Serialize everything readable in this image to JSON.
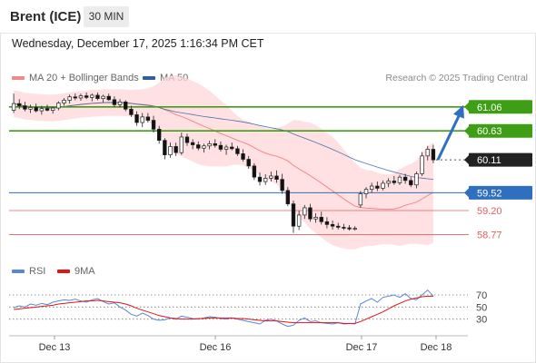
{
  "header": {
    "title": "Brent (ICE)",
    "timeframe": "30 MIN"
  },
  "subheader": {
    "datetime": "Wednesday, December 17, 2025 1:16:34 PM CET"
  },
  "legend": {
    "ma20_label": "MA 20 + Bollinger Bands",
    "ma50_label": "MA 50",
    "rsi_label": "RSI",
    "rsi_ma_label": "9MA",
    "credit": "Research © 2025 Trading Central"
  },
  "colors": {
    "ma20": "#f08a8a",
    "ma50": "#2f5fa0",
    "band": "#ffd6d9",
    "green": "#3e9e16",
    "blue_level": "#2e6fbf",
    "red_level": "#e06060",
    "price_tag": "#222222",
    "rsi": "#5b86d6",
    "rsi_ma": "#e01515",
    "candle_up": "#ffffff",
    "candle_down": "#111111"
  },
  "chart_data": [
    {
      "type": "candlestick",
      "y_range": [
        58.5,
        61.35
      ],
      "x_ticks": [
        "Dec 13",
        "Dec 16",
        "Dec 17",
        "Dec 18"
      ],
      "levels": [
        {
          "value": 61.06,
          "label": "61.06",
          "style": "green-tag"
        },
        {
          "value": 60.63,
          "label": "60.63",
          "style": "green-tag"
        },
        {
          "value": 60.11,
          "label": "60.11",
          "style": "current-price"
        },
        {
          "value": 59.52,
          "label": "59.52",
          "style": "blue-tag"
        },
        {
          "value": 59.2,
          "label": "59.20",
          "style": "red-text"
        },
        {
          "value": 58.77,
          "label": "58.77",
          "style": "red-text"
        }
      ],
      "forecast_arrow": {
        "from": 60.11,
        "to": 61.06
      },
      "candles": [
        [
          61.0,
          61.3,
          60.95,
          61.12
        ],
        [
          61.12,
          61.2,
          61.02,
          61.08
        ],
        [
          61.08,
          61.15,
          60.98,
          61.02
        ],
        [
          61.02,
          61.1,
          60.95,
          61.05
        ],
        [
          61.05,
          61.12,
          60.96,
          60.99
        ],
        [
          60.99,
          61.08,
          60.92,
          61.03
        ],
        [
          61.03,
          61.1,
          60.98,
          61.0
        ],
        [
          61.0,
          61.06,
          60.94,
          61.04
        ],
        [
          61.04,
          61.16,
          61.0,
          61.13
        ],
        [
          61.13,
          61.22,
          61.08,
          61.18
        ],
        [
          61.18,
          61.28,
          61.12,
          61.24
        ],
        [
          61.24,
          61.3,
          61.18,
          61.22
        ],
        [
          61.22,
          61.3,
          61.17,
          61.26
        ],
        [
          61.26,
          61.32,
          61.2,
          61.23
        ],
        [
          61.23,
          61.3,
          61.16,
          61.27
        ],
        [
          61.27,
          61.32,
          61.18,
          61.21
        ],
        [
          61.21,
          61.28,
          61.14,
          61.25
        ],
        [
          61.25,
          61.3,
          61.17,
          61.19
        ],
        [
          61.19,
          61.25,
          61.06,
          61.1
        ],
        [
          61.1,
          61.2,
          61.05,
          61.15
        ],
        [
          61.15,
          61.18,
          60.98,
          61.02
        ],
        [
          61.02,
          61.08,
          60.88,
          60.92
        ],
        [
          60.92,
          60.98,
          60.72,
          60.78
        ],
        [
          60.78,
          60.95,
          60.7,
          60.88
        ],
        [
          60.88,
          60.95,
          60.78,
          60.82
        ],
        [
          60.82,
          60.9,
          60.6,
          60.66
        ],
        [
          60.66,
          60.72,
          60.4,
          60.46
        ],
        [
          60.46,
          60.5,
          60.12,
          60.2
        ],
        [
          60.2,
          60.42,
          60.15,
          60.35
        ],
        [
          60.35,
          60.42,
          60.18,
          60.24
        ],
        [
          60.24,
          60.6,
          60.2,
          60.52
        ],
        [
          60.52,
          60.58,
          60.36,
          60.42
        ],
        [
          60.42,
          60.48,
          60.3,
          60.38
        ],
        [
          60.38,
          60.44,
          60.28,
          60.32
        ],
        [
          60.32,
          60.4,
          60.24,
          60.36
        ],
        [
          60.36,
          60.45,
          60.3,
          60.4
        ],
        [
          60.4,
          60.48,
          60.33,
          60.37
        ],
        [
          60.37,
          60.44,
          60.26,
          60.3
        ],
        [
          60.3,
          60.38,
          60.2,
          60.34
        ],
        [
          60.34,
          60.42,
          60.28,
          60.31
        ],
        [
          60.31,
          60.36,
          60.18,
          60.22
        ],
        [
          60.22,
          60.3,
          60.08,
          60.12
        ],
        [
          60.12,
          60.18,
          59.95,
          60.0
        ],
        [
          60.0,
          60.05,
          59.75,
          59.8
        ],
        [
          59.8,
          59.88,
          59.65,
          59.72
        ],
        [
          59.72,
          59.85,
          59.66,
          59.78
        ],
        [
          59.78,
          59.9,
          59.72,
          59.82
        ],
        [
          59.82,
          59.92,
          59.7,
          59.76
        ],
        [
          59.76,
          59.86,
          59.5,
          59.56
        ],
        [
          59.56,
          59.62,
          59.28,
          59.32
        ],
        [
          59.32,
          59.38,
          58.8,
          58.92
        ],
        [
          58.92,
          59.2,
          58.85,
          59.12
        ],
        [
          59.12,
          59.3,
          59.05,
          59.25
        ],
        [
          59.25,
          59.32,
          59.0,
          59.05
        ],
        [
          59.05,
          59.15,
          58.98,
          59.08
        ],
        [
          59.08,
          59.18,
          58.95,
          59.0
        ],
        [
          59.0,
          59.08,
          58.88,
          58.95
        ],
        [
          58.95,
          59.02,
          58.86,
          58.92
        ],
        [
          58.92,
          58.98,
          58.86,
          58.9
        ],
        [
          58.9,
          58.96,
          58.85,
          58.89
        ],
        [
          58.89,
          58.94,
          58.84,
          58.87
        ],
        [
          58.87,
          58.92,
          58.84,
          58.88
        ],
        [
          59.3,
          59.55,
          59.25,
          59.5
        ],
        [
          59.5,
          59.62,
          59.42,
          59.58
        ],
        [
          59.58,
          59.7,
          59.52,
          59.64
        ],
        [
          59.64,
          59.72,
          59.55,
          59.6
        ],
        [
          59.6,
          59.74,
          59.56,
          59.69
        ],
        [
          59.69,
          59.78,
          59.62,
          59.73
        ],
        [
          59.73,
          59.82,
          59.66,
          59.7
        ],
        [
          59.7,
          59.84,
          59.66,
          59.8
        ],
        [
          59.8,
          59.86,
          59.68,
          59.74
        ],
        [
          59.74,
          59.8,
          59.62,
          59.66
        ],
        [
          59.66,
          59.9,
          59.6,
          59.86
        ],
        [
          59.86,
          60.25,
          59.82,
          60.18
        ],
        [
          60.18,
          60.36,
          60.1,
          60.3
        ],
        [
          60.3,
          60.38,
          60.05,
          60.11
        ]
      ]
    },
    {
      "type": "line",
      "title": "RSI",
      "y_range": [
        10,
        85
      ],
      "y_ticks": [
        70,
        50,
        30
      ],
      "series": [
        {
          "name": "RSI",
          "values": [
            49,
            52,
            50,
            55,
            53,
            56,
            54,
            58,
            60,
            62,
            61,
            63,
            60,
            58,
            62,
            64,
            59,
            55,
            57,
            50,
            45,
            38,
            35,
            40,
            36,
            30,
            28,
            29,
            32,
            30,
            35,
            33,
            31,
            30,
            32,
            34,
            33,
            31,
            30,
            32,
            30,
            28,
            26,
            24,
            22,
            28,
            30,
            27,
            22,
            18,
            20,
            28,
            32,
            26,
            27,
            24,
            23,
            22,
            24,
            22,
            23,
            22,
            55,
            60,
            64,
            58,
            66,
            68,
            70,
            66,
            72,
            64,
            62,
            70,
            78,
            68
          ]
        },
        {
          "name": "9MA",
          "values": [
            46,
            47,
            48,
            49,
            50,
            51,
            52,
            53,
            55,
            56,
            57,
            58,
            59,
            60,
            60,
            61,
            60,
            59,
            58,
            57,
            55,
            52,
            48,
            45,
            42,
            39,
            36,
            34,
            32,
            31,
            30,
            30,
            30,
            31,
            31,
            32,
            32,
            32,
            32,
            32,
            31,
            31,
            30,
            29,
            28,
            27,
            27,
            27,
            26,
            25,
            24,
            24,
            24,
            24,
            24,
            24,
            24,
            24,
            24,
            23,
            23,
            23,
            26,
            30,
            34,
            38,
            42,
            47,
            52,
            56,
            60,
            63,
            65,
            67,
            68,
            68
          ]
        }
      ]
    }
  ]
}
